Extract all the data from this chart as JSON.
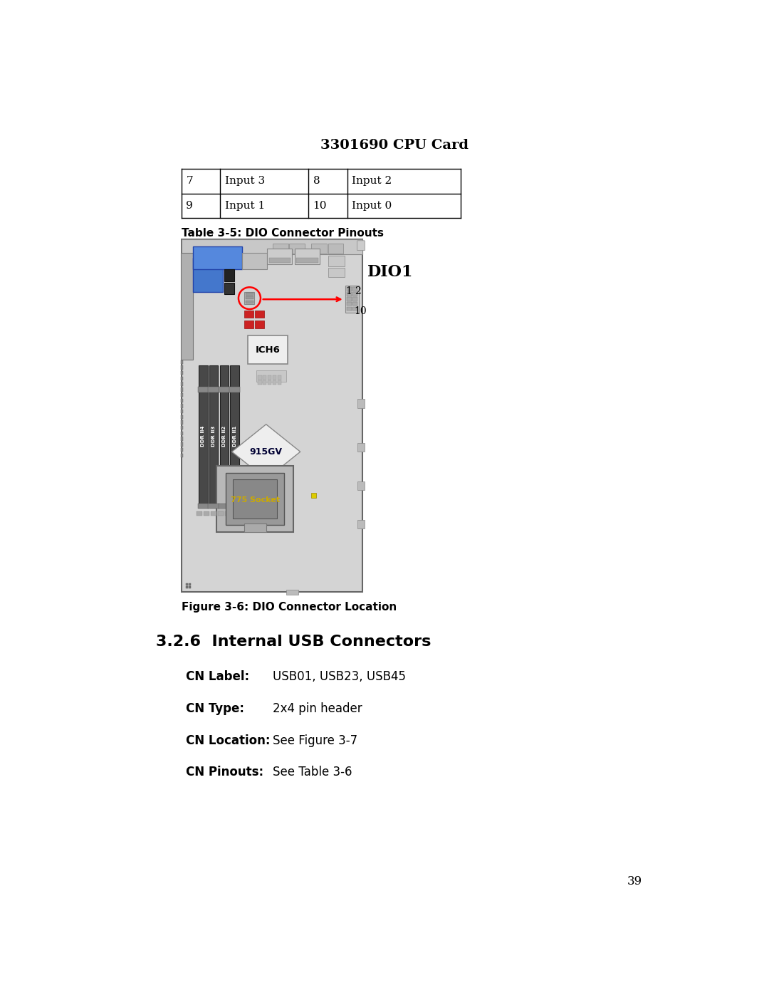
{
  "title": "3301690 CPU Card",
  "table_rows": [
    [
      "7",
      "Input 3",
      "8",
      "Input 2"
    ],
    [
      "9",
      "Input 1",
      "10",
      "Input 0"
    ]
  ],
  "table_caption": "Table 3-5: DIO Connector Pinouts",
  "figure_caption": "Figure 3-6: DIO Connector Location",
  "section_title": "3.2.6  Internal USB Connectors",
  "cn_label_key": "CN Label:",
  "cn_label_val": "USB01, USB23, USB45",
  "cn_type_key": "CN Type:",
  "cn_type_val": "2x4 pin header",
  "cn_location_key": "CN Location:",
  "cn_location_val": "See Figure 3-7",
  "cn_pinouts_key": "CN Pinouts:",
  "cn_pinouts_val": "See Table 3-6",
  "page_number": "39",
  "bg_color": "#ffffff"
}
